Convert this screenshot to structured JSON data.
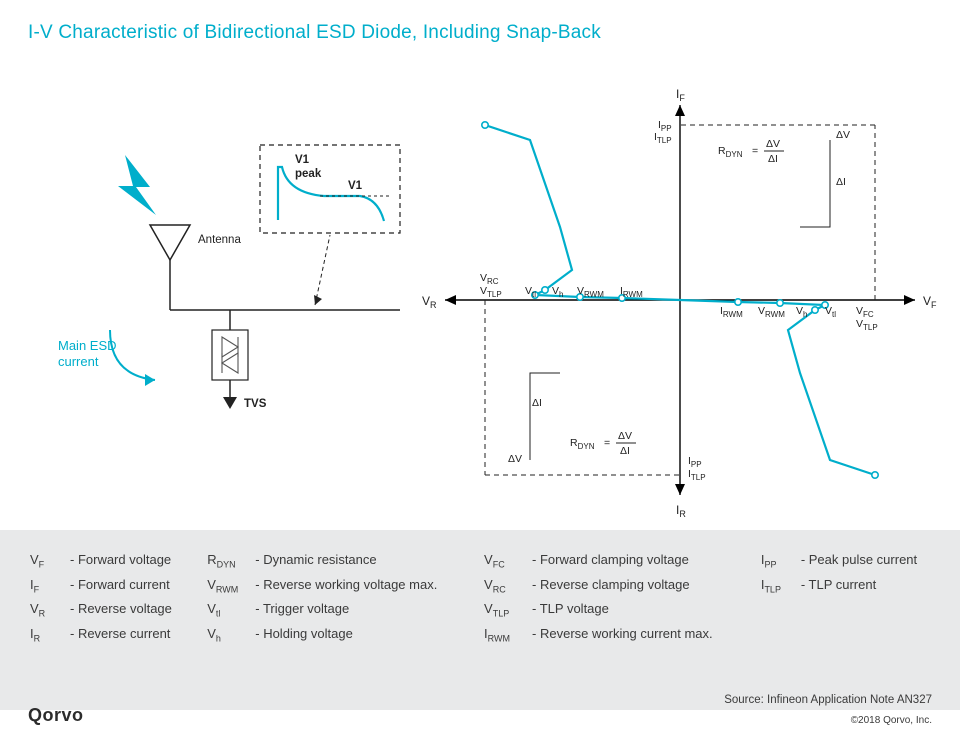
{
  "colors": {
    "accent": "#00aecb",
    "text": "#222222",
    "gray_bg": "#e8e9ea",
    "dash": "#222222"
  },
  "title": "I-V Characteristic of Bidirectional ESD Diode, Including Snap-Back",
  "circuit": {
    "antenna_label": "Antenna",
    "esd_current_label": "Main ESD\ncurrent",
    "tvs_label": "TVS",
    "inset": {
      "v1peak": "V1",
      "peak": "peak",
      "v1": "V1"
    }
  },
  "iv": {
    "axis": {
      "vf": "V",
      "vf_sub": "F",
      "vr": "V",
      "vr_sub": "R",
      "if": "I",
      "if_sub": "F",
      "ir": "I",
      "ir_sub": "R"
    },
    "ticks_right": [
      "I",
      "V",
      "V",
      "V",
      "V"
    ],
    "ticks_right_sub": [
      "RWM",
      "RWM",
      "h",
      "tl",
      "FC"
    ],
    "ticks_right_extra": "V",
    "ticks_right_extra_sub": "TLP",
    "ticks_left": [
      "V",
      "V",
      "V",
      "V",
      "I"
    ],
    "ticks_left_sub": [
      "TLP",
      "tl",
      "h",
      "RWM",
      "RWM"
    ],
    "ticks_left_extra": "V",
    "ticks_left_extra_sub": "RC",
    "ipp": "I",
    "ipp_sub": "PP",
    "itlp": "I",
    "itlp_sub": "TLP",
    "rdyn": "R",
    "rdyn_sub": "DYN",
    "dv": "ΔV",
    "di": "ΔI",
    "equals": "="
  },
  "legend": {
    "colA": [
      {
        "s": "V",
        "sub": "F",
        "d": "Forward voltage"
      },
      {
        "s": "I",
        "sub": "F",
        "d": "Forward current"
      },
      {
        "s": "V",
        "sub": "R",
        "d": "Reverse voltage"
      },
      {
        "s": "I",
        "sub": "R",
        "d": "Reverse current"
      }
    ],
    "colB": [
      {
        "s": "R",
        "sub": "DYN",
        "d": "Dynamic resistance"
      },
      {
        "s": "V",
        "sub": "RWM",
        "d": "Reverse working voltage max."
      },
      {
        "s": "V",
        "sub": "tl",
        "d": "Trigger voltage"
      },
      {
        "s": "V",
        "sub": "h",
        "d": "Holding voltage"
      }
    ],
    "colC": [
      {
        "s": "V",
        "sub": "FC",
        "d": "Forward clamping voltage"
      },
      {
        "s": "V",
        "sub": "RC",
        "d": "Reverse clamping voltage"
      },
      {
        "s": "V",
        "sub": "TLP",
        "d": "TLP voltage"
      },
      {
        "s": "I",
        "sub": "RWM",
        "d": "Reverse working current max."
      }
    ],
    "colD": [
      {
        "s": "I",
        "sub": "PP",
        "d": "Peak pulse current"
      },
      {
        "s": "I",
        "sub": "TLP",
        "d": "TLP current"
      }
    ]
  },
  "footer": {
    "logo": "Qorvo",
    "source": "Source: Infineon Application Note AN327",
    "copyright": "©2018 Qorvo, Inc."
  },
  "chart_style": {
    "curve_color": "#00aecb",
    "curve_width": 2.2,
    "marker_radius": 3.2,
    "marker_fill": "#ffffff",
    "axis_color": "#000000",
    "axis_width": 1.4,
    "dash_pattern": "5,4",
    "background": "#ffffff"
  },
  "iv_curve_points": [
    [
      -195,
      175
    ],
    [
      -150,
      160
    ],
    [
      -120,
      73
    ],
    [
      -108,
      30
    ],
    [
      -135,
      10
    ],
    [
      -145,
      5
    ],
    [
      -100,
      3
    ],
    [
      -58,
      2
    ],
    [
      0,
      0
    ],
    [
      58,
      -2
    ],
    [
      100,
      -3
    ],
    [
      145,
      -5
    ],
    [
      135,
      -10
    ],
    [
      108,
      -30
    ],
    [
      120,
      -73
    ],
    [
      150,
      -160
    ],
    [
      195,
      -175
    ]
  ],
  "iv_markers": [
    [
      -195,
      175
    ],
    [
      -135,
      10
    ],
    [
      -145,
      5
    ],
    [
      -100,
      3
    ],
    [
      -58,
      2
    ],
    [
      58,
      -2
    ],
    [
      100,
      -3
    ],
    [
      145,
      -5
    ],
    [
      135,
      -10
    ],
    [
      195,
      -175
    ]
  ]
}
